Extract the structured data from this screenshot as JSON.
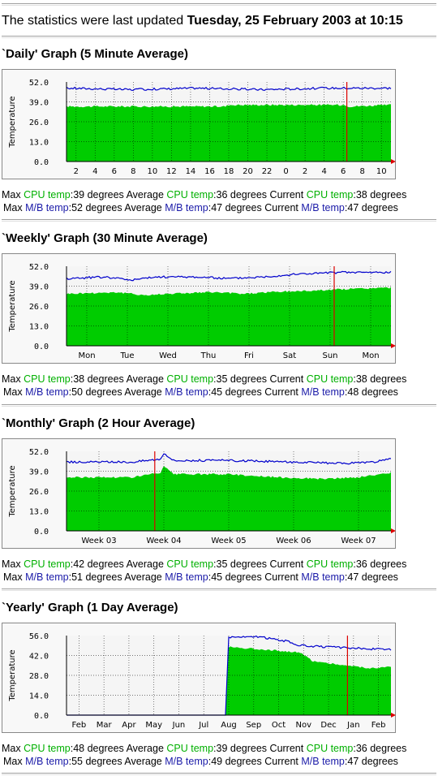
{
  "header": {
    "prefix": "The statistics were last updated",
    "timestamp": "Tuesday, 25 February 2003 at 10:15"
  },
  "colors": {
    "cpu": "#00cc00",
    "mb": "#0000cc",
    "now_marker": "#dd0000",
    "plot_bg": "#f5f5f5",
    "panel_bg": "#f8f8f8"
  },
  "labels": {
    "max": "Max",
    "average": "Average",
    "current": "Current",
    "cpu": "CPU temp",
    "mb": "M/B temp",
    "unit": "degrees"
  },
  "sections": [
    {
      "title": "`Daily' Graph (5 Minute Average)",
      "cpu_stats": {
        "max": "39",
        "average": "36",
        "current": "38"
      },
      "mb_stats": {
        "max": "52",
        "average": "47",
        "current": "47"
      }
    },
    {
      "title": "`Weekly' Graph (30 Minute Average)",
      "cpu_stats": {
        "max": "38",
        "average": "35",
        "current": "38"
      },
      "mb_stats": {
        "max": "50",
        "average": "45",
        "current": "48"
      }
    },
    {
      "title": "`Monthly' Graph (2 Hour Average)",
      "cpu_stats": {
        "max": "42",
        "average": "35",
        "current": "36"
      },
      "mb_stats": {
        "max": "51",
        "average": "45",
        "current": "47"
      }
    },
    {
      "title": "`Yearly' Graph (1 Day Average)",
      "cpu_stats": {
        "max": "48",
        "average": "39",
        "current": "36"
      },
      "mb_stats": {
        "max": "55",
        "average": "49",
        "current": "47"
      }
    }
  ],
  "chart_data": [
    {
      "type": "area",
      "ylabel": "Temperature",
      "yticks": [
        "52.0",
        "39.0",
        "26.0",
        "13.0",
        "0.0"
      ],
      "ylim": [
        0,
        52
      ],
      "grid": true,
      "x_ticks": [
        "2",
        "4",
        "6",
        "8",
        "10",
        "12",
        "14",
        "16",
        "18",
        "20",
        "22",
        "0",
        "2",
        "4",
        "6",
        "8",
        "10"
      ],
      "series": [
        {
          "role": "cpu",
          "levels": [
            [
              0,
              36
            ],
            [
              0.49,
              36
            ],
            [
              0.5,
              37
            ],
            [
              0.86,
              37
            ],
            [
              0.87,
              36
            ],
            [
              1,
              37
            ]
          ]
        },
        {
          "role": "mb",
          "levels": [
            [
              0,
              48
            ],
            [
              0.2,
              47
            ],
            [
              0.4,
              48
            ],
            [
              0.6,
              47
            ],
            [
              0.8,
              48
            ],
            [
              1,
              48
            ]
          ]
        }
      ],
      "now_marker": 0.864
    },
    {
      "type": "area",
      "ylabel": "Temperature",
      "yticks": [
        "52.0",
        "39.0",
        "26.0",
        "13.0",
        "0.0"
      ],
      "ylim": [
        0,
        52
      ],
      "grid": true,
      "x_ticks": [
        "Mon",
        "Tue",
        "Wed",
        "Thu",
        "Fri",
        "Sat",
        "Sun",
        "Mon"
      ],
      "series": [
        {
          "role": "cpu",
          "levels": [
            [
              0,
              34
            ],
            [
              0.15,
              35
            ],
            [
              0.25,
              33
            ],
            [
              0.3,
              34
            ],
            [
              0.45,
              35
            ],
            [
              0.55,
              34
            ],
            [
              0.62,
              35
            ],
            [
              0.75,
              36
            ],
            [
              0.85,
              37
            ],
            [
              1,
              38
            ]
          ]
        },
        {
          "role": "mb",
          "levels": [
            [
              0,
              44
            ],
            [
              0.12,
              45
            ],
            [
              0.2,
              43
            ],
            [
              0.28,
              45
            ],
            [
              0.4,
              45
            ],
            [
              0.5,
              44
            ],
            [
              0.6,
              45
            ],
            [
              0.72,
              47
            ],
            [
              0.85,
              48
            ],
            [
              1,
              48
            ]
          ]
        }
      ],
      "now_marker": 0.825
    },
    {
      "type": "area",
      "ylabel": "Temperature",
      "yticks": [
        "52.0",
        "39.0",
        "26.0",
        "13.0",
        "0.0"
      ],
      "ylim": [
        0,
        52
      ],
      "grid": true,
      "x_ticks": [
        "Week 03",
        "Week 04",
        "Week 05",
        "Week 06",
        "Week 07"
      ],
      "series": [
        {
          "role": "cpu",
          "levels": [
            [
              0,
              35
            ],
            [
              0.2,
              35
            ],
            [
              0.29,
              38
            ],
            [
              0.3,
              42
            ],
            [
              0.33,
              37
            ],
            [
              0.5,
              37
            ],
            [
              0.65,
              35
            ],
            [
              0.8,
              34
            ],
            [
              0.9,
              35
            ],
            [
              1,
              38
            ]
          ]
        },
        {
          "role": "mb",
          "levels": [
            [
              0,
              45
            ],
            [
              0.2,
              45
            ],
            [
              0.29,
              47
            ],
            [
              0.3,
              51
            ],
            [
              0.33,
              46
            ],
            [
              0.5,
              46
            ],
            [
              0.7,
              45
            ],
            [
              0.85,
              44
            ],
            [
              0.95,
              45
            ],
            [
              1,
              47
            ]
          ]
        }
      ],
      "now_marker": 0.272
    },
    {
      "type": "area",
      "ylabel": "Temperature",
      "yticks": [
        "56.0",
        "42.0",
        "28.0",
        "14.0",
        "0.0"
      ],
      "ylim": [
        0,
        56
      ],
      "grid": true,
      "x_ticks": [
        "Feb",
        "Mar",
        "Apr",
        "May",
        "Jun",
        "Jul",
        "Aug",
        "Sep",
        "Oct",
        "Nov",
        "Dec",
        "Jan",
        "Feb"
      ],
      "series": [
        {
          "role": "cpu",
          "levels": [
            [
              0,
              0
            ],
            [
              0.49,
              0
            ],
            [
              0.5,
              48
            ],
            [
              0.62,
              46
            ],
            [
              0.72,
              44
            ],
            [
              0.76,
              38
            ],
            [
              0.86,
              35
            ],
            [
              0.94,
              33
            ],
            [
              1,
              34
            ]
          ]
        },
        {
          "role": "mb",
          "levels": [
            [
              0,
              0
            ],
            [
              0.49,
              0
            ],
            [
              0.5,
              55
            ],
            [
              0.6,
              55
            ],
            [
              0.68,
              52
            ],
            [
              0.72,
              49
            ],
            [
              0.8,
              48
            ],
            [
              0.9,
              47
            ],
            [
              1,
              46
            ]
          ]
        }
      ],
      "now_marker": 0.866
    }
  ]
}
